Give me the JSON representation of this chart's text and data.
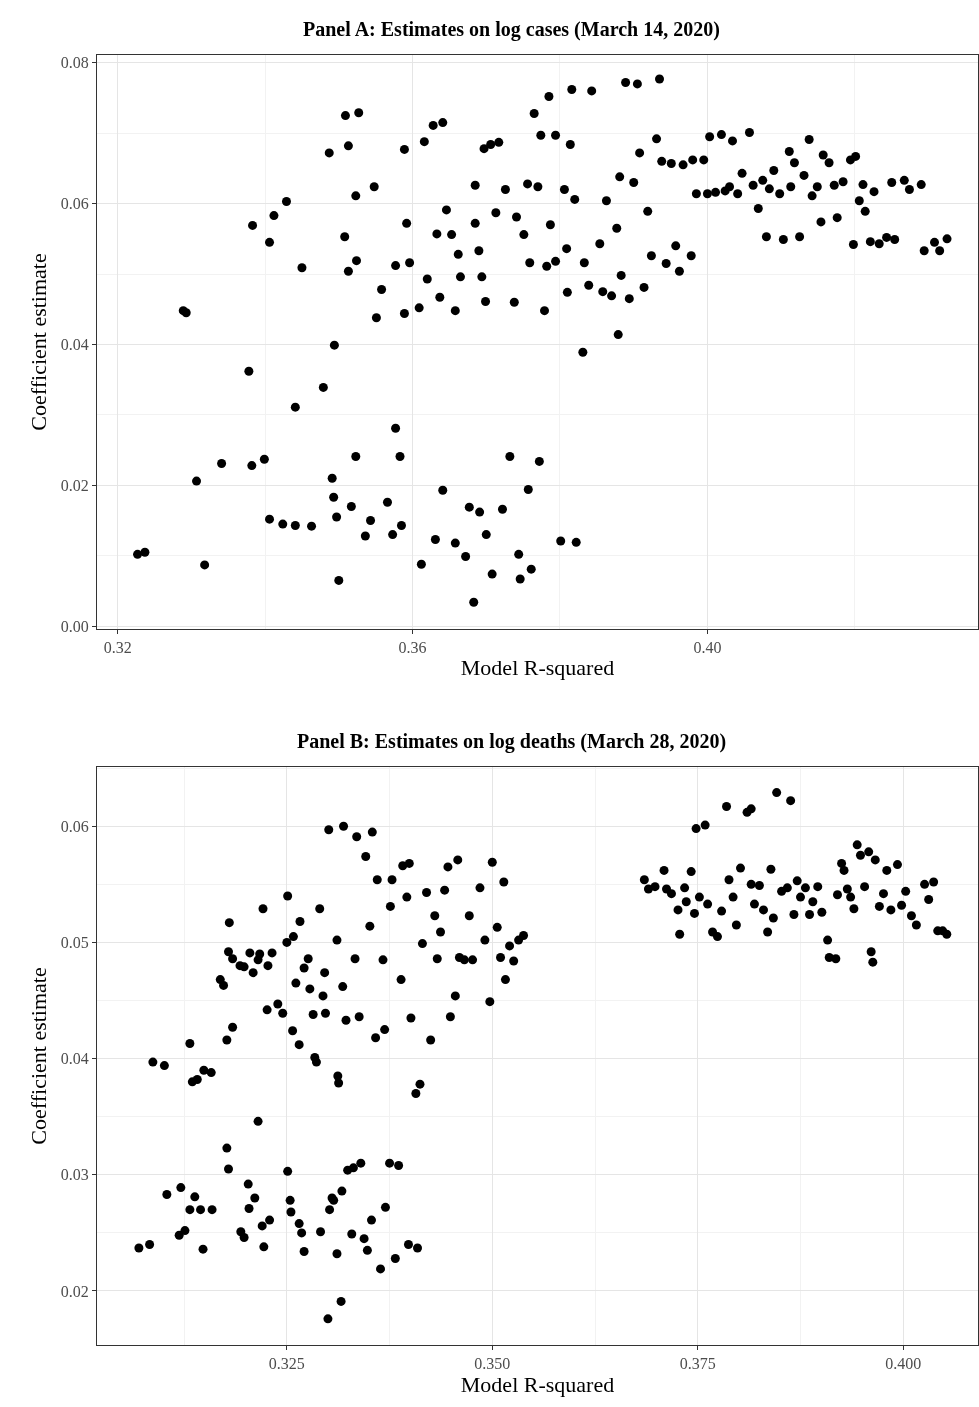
{
  "chart_data": [
    {
      "type": "scatter",
      "title": "Panel A: Estimates on log cases (March 14, 2020)",
      "xlabel": "Model R-squared",
      "ylabel": "Coefficient estimate",
      "color": "#000000",
      "marker": "circle",
      "grid": true,
      "xlim": [
        0.3172,
        0.4367
      ],
      "ylim": [
        -0.0004,
        0.0811
      ],
      "xticks": [
        {
          "value": 0.32,
          "label": "0.32"
        },
        {
          "value": 0.36,
          "label": "0.36"
        },
        {
          "value": 0.4,
          "label": "0.40"
        }
      ],
      "yticks": [
        {
          "value": 0,
          "label": "0.00"
        },
        {
          "value": 0.02,
          "label": "0.02"
        },
        {
          "value": 0.04,
          "label": "0.04"
        },
        {
          "value": 0.06,
          "label": "0.06"
        },
        {
          "value": 0.08,
          "label": "0.08"
        }
      ],
      "x": [
        0.3227,
        0.3237,
        0.3289,
        0.3293,
        0.3307,
        0.3318,
        0.3341,
        0.3378,
        0.3382,
        0.3383,
        0.3399,
        0.3406,
        0.3406,
        0.3412,
        0.3424,
        0.3429,
        0.3441,
        0.3441,
        0.345,
        0.3463,
        0.3479,
        0.3487,
        0.3491,
        0.3494,
        0.3493,
        0.35,
        0.3497,
        0.3508,
        0.3509,
        0.3513,
        0.3513,
        0.3517,
        0.3523,
        0.3524,
        0.3523,
        0.3527,
        0.3536,
        0.3543,
        0.3548,
        0.3551,
        0.3558,
        0.3566,
        0.3573,
        0.3577,
        0.3577,
        0.3583,
        0.3585,
        0.3589,
        0.3589,
        0.3592,
        0.3596,
        0.3609,
        0.3612,
        0.3616,
        0.362,
        0.3628,
        0.3631,
        0.3633,
        0.3641,
        0.3641,
        0.3637,
        0.3646,
        0.3653,
        0.3658,
        0.3658,
        0.3662,
        0.3665,
        0.3672,
        0.3677,
        0.3683,
        0.3685,
        0.3685,
        0.369,
        0.3691,
        0.3694,
        0.3697,
        0.3699,
        0.37,
        0.3706,
        0.3708,
        0.3713,
        0.3717,
        0.3722,
        0.3726,
        0.3732,
        0.3738,
        0.3741,
        0.3744,
        0.3746,
        0.3751,
        0.3756,
        0.3757,
        0.3759,
        0.3761,
        0.3765,
        0.377,
        0.3772,
        0.3774,
        0.3779,
        0.3782,
        0.3785,
        0.3787,
        0.3794,
        0.3794,
        0.3801,
        0.3806,
        0.3809,
        0.381,
        0.3814,
        0.3816,
        0.382,
        0.3822,
        0.3831,
        0.3833,
        0.3839,
        0.3843,
        0.3854,
        0.3858,
        0.3863,
        0.387,
        0.3877,
        0.3879,
        0.3881,
        0.3883,
        0.3889,
        0.3894,
        0.39,
        0.3905,
        0.3908,
        0.3914,
        0.3919,
        0.3924,
        0.3931,
        0.3935,
        0.3938,
        0.3944,
        0.3951,
        0.3957,
        0.3962,
        0.3967,
        0.3978,
        0.398,
        0.3985,
        0.3995,
        0.4003,
        0.4,
        0.4011,
        0.4019,
        0.4024,
        0.403,
        0.4034,
        0.4041,
        0.4047,
        0.4057,
        0.4062,
        0.4069,
        0.4075,
        0.408,
        0.4084,
        0.409,
        0.4098,
        0.4103,
        0.4111,
        0.4113,
        0.4118,
        0.4125,
        0.4131,
        0.4138,
        0.4142,
        0.4149,
        0.4154,
        0.4157,
        0.4165,
        0.4172,
        0.4176,
        0.4184,
        0.4194,
        0.4198,
        0.4201,
        0.4206,
        0.4211,
        0.4214,
        0.4221,
        0.4226,
        0.4233,
        0.4243,
        0.425,
        0.4254,
        0.4267,
        0.4274,
        0.429,
        0.4294,
        0.4308,
        0.4315,
        0.4325
      ],
      "values": [
        0.0102,
        0.0105,
        0.0448,
        0.0445,
        0.0206,
        0.0087,
        0.0231,
        0.0362,
        0.0228,
        0.0569,
        0.0237,
        0.0152,
        0.0545,
        0.0583,
        0.0145,
        0.0603,
        0.0311,
        0.0143,
        0.0509,
        0.0142,
        0.0339,
        0.0672,
        0.021,
        0.0399,
        0.0183,
        0.0065,
        0.0155,
        0.0553,
        0.0725,
        0.0682,
        0.0504,
        0.017,
        0.0611,
        0.0519,
        0.0241,
        0.0729,
        0.0128,
        0.015,
        0.0624,
        0.0438,
        0.0478,
        0.0176,
        0.013,
        0.0281,
        0.0512,
        0.0241,
        0.0143,
        0.0677,
        0.0444,
        0.0572,
        0.0516,
        0.0452,
        0.0088,
        0.0688,
        0.0493,
        0.0711,
        0.0123,
        0.0557,
        0.0715,
        0.0193,
        0.0467,
        0.0591,
        0.0556,
        0.0448,
        0.0118,
        0.0528,
        0.0496,
        0.0099,
        0.0169,
        0.0034,
        0.0626,
        0.0572,
        0.0533,
        0.0162,
        0.0496,
        0.0678,
        0.0461,
        0.013,
        0.0684,
        0.0074,
        0.0587,
        0.0687,
        0.0166,
        0.062,
        0.0241,
        0.046,
        0.0581,
        0.0102,
        0.0067,
        0.0556,
        0.0628,
        0.0194,
        0.0516,
        0.0081,
        0.0728,
        0.0624,
        0.0234,
        0.0697,
        0.0448,
        0.0511,
        0.0752,
        0.057,
        0.0697,
        0.0518,
        0.0121,
        0.062,
        0.0536,
        0.0474,
        0.0684,
        0.0762,
        0.0606,
        0.0119,
        0.0389,
        0.0516,
        0.0484,
        0.076,
        0.0543,
        0.0475,
        0.0604,
        0.0469,
        0.0565,
        0.0414,
        0.0638,
        0.0498,
        0.0772,
        0.0465,
        0.063,
        0.077,
        0.0672,
        0.0481,
        0.0589,
        0.0526,
        0.0692,
        0.0777,
        0.066,
        0.0515,
        0.0657,
        0.054,
        0.0504,
        0.0655,
        0.0526,
        0.0662,
        0.0614,
        0.0662,
        0.0695,
        0.0614,
        0.0616,
        0.0698,
        0.0618,
        0.0624,
        0.0689,
        0.0614,
        0.0643,
        0.0701,
        0.0626,
        0.0593,
        0.0633,
        0.0553,
        0.0621,
        0.0647,
        0.0614,
        0.0549,
        0.0674,
        0.0624,
        0.0658,
        0.0553,
        0.064,
        0.0691,
        0.0611,
        0.0624,
        0.0574,
        0.0669,
        0.0658,
        0.0626,
        0.058,
        0.0631,
        0.0662,
        0.0542,
        0.0667,
        0.0604,
        0.0627,
        0.0589,
        0.0546,
        0.0617,
        0.0543,
        0.0552,
        0.063,
        0.0549,
        0.0633,
        0.062,
        0.0627,
        0.0533,
        0.0545,
        0.0533,
        0.055
      ]
    },
    {
      "type": "scatter",
      "title": "Panel B: Estimates on log deaths (March 28, 2020)",
      "xlabel": "Model R-squared",
      "ylabel": "Coefficient estimate",
      "color": "#000000",
      "marker": "circle",
      "grid": true,
      "xlim": [
        0.3019,
        0.4091
      ],
      "ylim": [
        0.01535,
        0.0651
      ],
      "xticks": [
        {
          "value": 0.325,
          "label": "0.325"
        },
        {
          "value": 0.35,
          "label": "0.350"
        },
        {
          "value": 0.375,
          "label": "0.375"
        },
        {
          "value": 0.4,
          "label": "0.400"
        }
      ],
      "yticks": [
        {
          "value": 0.02,
          "label": "0.02"
        },
        {
          "value": 0.03,
          "label": "0.03"
        },
        {
          "value": 0.04,
          "label": "0.04"
        },
        {
          "value": 0.05,
          "label": "0.05"
        },
        {
          "value": 0.06,
          "label": "0.06"
        }
      ],
      "x": [
        0.307,
        0.3083,
        0.3087,
        0.3101,
        0.3104,
        0.3119,
        0.3121,
        0.3126,
        0.3132,
        0.3135,
        0.3132,
        0.3138,
        0.3141,
        0.3145,
        0.3148,
        0.3149,
        0.3158,
        0.3159,
        0.3169,
        0.3173,
        0.3177,
        0.3177,
        0.3179,
        0.3179,
        0.318,
        0.3184,
        0.3184,
        0.3193,
        0.3194,
        0.3198,
        0.3198,
        0.3203,
        0.3204,
        0.3205,
        0.3209,
        0.3211,
        0.3215,
        0.3215,
        0.3217,
        0.322,
        0.3222,
        0.3221,
        0.3226,
        0.3227,
        0.3229,
        0.3232,
        0.3239,
        0.3245,
        0.325,
        0.3251,
        0.3251,
        0.3254,
        0.3255,
        0.3257,
        0.3258,
        0.3261,
        0.3265,
        0.3265,
        0.3266,
        0.3268,
        0.3271,
        0.3271,
        0.3276,
        0.3278,
        0.3282,
        0.3284,
        0.3286,
        0.329,
        0.3291,
        0.3294,
        0.3296,
        0.3297,
        0.33,
        0.3301,
        0.3302,
        0.3305,
        0.3307,
        0.3311,
        0.3311,
        0.3312,
        0.3313,
        0.3316,
        0.3317,
        0.3318,
        0.3319,
        0.3322,
        0.3324,
        0.3329,
        0.3331,
        0.3333,
        0.3335,
        0.3338,
        0.334,
        0.3344,
        0.3346,
        0.3348,
        0.3351,
        0.3353,
        0.3354,
        0.3358,
        0.336,
        0.3364,
        0.3367,
        0.3369,
        0.337,
        0.3375,
        0.3376,
        0.3378,
        0.3382,
        0.3386,
        0.3389,
        0.3391,
        0.3396,
        0.3398,
        0.3399,
        0.3401,
        0.3407,
        0.3409,
        0.3412,
        0.3415,
        0.342,
        0.3425,
        0.343,
        0.3433,
        0.3437,
        0.3442,
        0.3446,
        0.3449,
        0.3455,
        0.3458,
        0.346,
        0.3466,
        0.3472,
        0.3476,
        0.3485,
        0.3491,
        0.3497,
        0.35,
        0.3506,
        0.351,
        0.3514,
        0.3516,
        0.3521,
        0.3526,
        0.3532,
        0.3538,
        0.3685,
        0.369,
        0.3698,
        0.3709,
        0.3712,
        0.3718,
        0.3726,
        0.3728,
        0.3734,
        0.3736,
        0.3742,
        0.3746,
        0.3748,
        0.3752,
        0.3759,
        0.3762,
        0.3768,
        0.3774,
        0.3779,
        0.3785,
        0.3788,
        0.3793,
        0.3797,
        0.3802,
        0.381,
        0.3815,
        0.3815,
        0.3819,
        0.3825,
        0.383,
        0.3835,
        0.3839,
        0.3842,
        0.3846,
        0.3852,
        0.3859,
        0.3863,
        0.3867,
        0.3871,
        0.3875,
        0.3881,
        0.3886,
        0.389,
        0.3896,
        0.3901,
        0.3908,
        0.391,
        0.3918,
        0.392,
        0.3925,
        0.3928,
        0.3932,
        0.3936,
        0.394,
        0.3944,
        0.3948,
        0.3953,
        0.3958,
        0.3961,
        0.3963,
        0.3966,
        0.3971,
        0.3976,
        0.398,
        0.3985,
        0.3993,
        0.3998,
        0.4003,
        0.401,
        0.4016,
        0.4026,
        0.4031,
        0.4037,
        0.4042,
        0.4048,
        0.4053
      ],
      "values": [
        0.0237,
        0.024,
        0.0397,
        0.0394,
        0.0283,
        0.0248,
        0.0289,
        0.0252,
        0.0413,
        0.038,
        0.027,
        0.0281,
        0.0382,
        0.027,
        0.0236,
        0.039,
        0.0388,
        0.027,
        0.0468,
        0.0463,
        0.0416,
        0.0323,
        0.0305,
        0.0492,
        0.0517,
        0.0427,
        0.0486,
        0.048,
        0.0251,
        0.0246,
        0.0479,
        0.0292,
        0.0271,
        0.0491,
        0.0474,
        0.028,
        0.0485,
        0.0346,
        0.049,
        0.0256,
        0.0238,
        0.0529,
        0.0442,
        0.048,
        0.0261,
        0.0491,
        0.0447,
        0.0439,
        0.05,
        0.054,
        0.0303,
        0.0278,
        0.0268,
        0.0424,
        0.0505,
        0.0465,
        0.0412,
        0.0258,
        0.0518,
        0.025,
        0.0234,
        0.0478,
        0.0486,
        0.046,
        0.0438,
        0.0401,
        0.0397,
        0.0529,
        0.0251,
        0.0454,
        0.0474,
        0.0439,
        0.0176,
        0.0597,
        0.027,
        0.028,
        0.0278,
        0.0502,
        0.0232,
        0.0385,
        0.0379,
        0.0191,
        0.0286,
        0.0462,
        0.06,
        0.0433,
        0.0304,
        0.0249,
        0.0306,
        0.0486,
        0.0591,
        0.0436,
        0.031,
        0.0245,
        0.0574,
        0.0235,
        0.0514,
        0.0261,
        0.0595,
        0.0418,
        0.0554,
        0.0219,
        0.0485,
        0.0425,
        0.0272,
        0.031,
        0.0531,
        0.0554,
        0.0228,
        0.0308,
        0.0468,
        0.0566,
        0.0539,
        0.024,
        0.0568,
        0.0435,
        0.037,
        0.0237,
        0.0378,
        0.0499,
        0.0543,
        0.0416,
        0.0523,
        0.0486,
        0.0509,
        0.0545,
        0.0565,
        0.0436,
        0.0454,
        0.0571,
        0.0487,
        0.0485,
        0.0523,
        0.0485,
        0.0547,
        0.0502,
        0.0449,
        0.0569,
        0.0513,
        0.0487,
        0.0552,
        0.0468,
        0.0497,
        0.0484,
        0.0502,
        0.0506,
        0.0554,
        0.0546,
        0.0548,
        0.0562,
        0.0546,
        0.0542,
        0.0528,
        0.0507,
        0.0547,
        0.0535,
        0.0561,
        0.0525,
        0.0598,
        0.0539,
        0.0601,
        0.0533,
        0.0509,
        0.0505,
        0.0527,
        0.0617,
        0.0554,
        0.0539,
        0.0515,
        0.0564,
        0.0612,
        0.0615,
        0.055,
        0.0533,
        0.0549,
        0.0528,
        0.0509,
        0.0563,
        0.0521,
        0.0629,
        0.0544,
        0.0547,
        0.0622,
        0.0524,
        0.0553,
        0.0539,
        0.0547,
        0.0524,
        0.0535,
        0.0548,
        0.0526,
        0.0502,
        0.0487,
        0.0486,
        0.0541,
        0.0568,
        0.0562,
        0.0546,
        0.0539,
        0.0529,
        0.0584,
        0.0575,
        0.0548,
        0.0578,
        0.0492,
        0.0483,
        0.0571,
        0.0531,
        0.0542,
        0.0562,
        0.0528,
        0.0567,
        0.0532,
        0.0544,
        0.0523,
        0.0515,
        0.055,
        0.0537,
        0.0552,
        0.051,
        0.051,
        0.0507
      ]
    }
  ]
}
